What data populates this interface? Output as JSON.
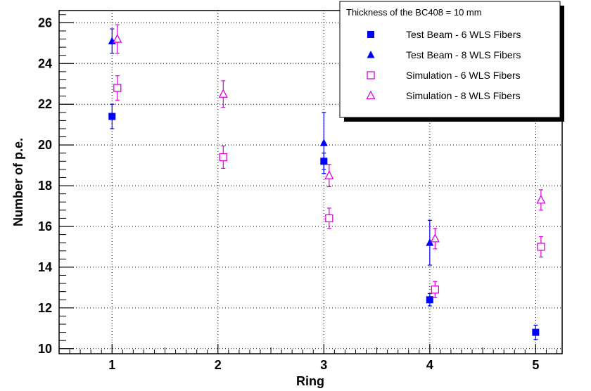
{
  "chart_data": {
    "type": "scatter",
    "title": "",
    "xlabel": "Ring",
    "ylabel": "Number of p.e.",
    "xlim": [
      0.5,
      5.25
    ],
    "ylim": [
      9.75,
      26.6
    ],
    "x_ticks": [
      1,
      2,
      3,
      4,
      5
    ],
    "y_ticks": [
      10,
      12,
      14,
      16,
      18,
      20,
      22,
      24,
      26
    ],
    "grid": true,
    "legend": {
      "header": "Thickness of the BC408 = 10 mm",
      "placement": "top-right"
    },
    "series": [
      {
        "name": "Test Beam -  6 WLS Fibers",
        "marker": "filled-square",
        "color": "#0000ff",
        "points": [
          {
            "x": 1,
            "y": 21.4,
            "err": 0.6
          },
          {
            "x": 3,
            "y": 19.2,
            "err": 0.4
          },
          {
            "x": 4,
            "y": 12.4,
            "err": 0.3
          },
          {
            "x": 5,
            "y": 10.8,
            "err": 0.35
          }
        ]
      },
      {
        "name": "Test Beam -  8 WLS Fibers",
        "marker": "filled-triangle",
        "color": "#0000ff",
        "points": [
          {
            "x": 1,
            "y": 25.1,
            "err": 0.6
          },
          {
            "x": 3,
            "y": 20.1,
            "err": 1.5
          },
          {
            "x": 4,
            "y": 15.2,
            "err": 1.1
          }
        ]
      },
      {
        "name": "Simulation  -  6 WLS Fibers",
        "marker": "open-square",
        "color": "#dd00dd",
        "points": [
          {
            "x": 1.05,
            "y": 22.8,
            "err": 0.6
          },
          {
            "x": 2.05,
            "y": 19.4,
            "err": 0.55
          },
          {
            "x": 3.05,
            "y": 16.4,
            "err": 0.5
          },
          {
            "x": 4.05,
            "y": 12.9,
            "err": 0.4
          },
          {
            "x": 5.05,
            "y": 15.0,
            "err": 0.5
          }
        ]
      },
      {
        "name": "Simulation  -  8 WLS Fibers",
        "marker": "open-triangle",
        "color": "#dd00dd",
        "points": [
          {
            "x": 1.05,
            "y": 25.2,
            "err": 0.7
          },
          {
            "x": 2.05,
            "y": 22.5,
            "err": 0.65
          },
          {
            "x": 3.05,
            "y": 18.5,
            "err": 0.55
          },
          {
            "x": 4.05,
            "y": 15.4,
            "err": 0.5
          },
          {
            "x": 5.05,
            "y": 17.3,
            "err": 0.5
          }
        ]
      }
    ]
  }
}
